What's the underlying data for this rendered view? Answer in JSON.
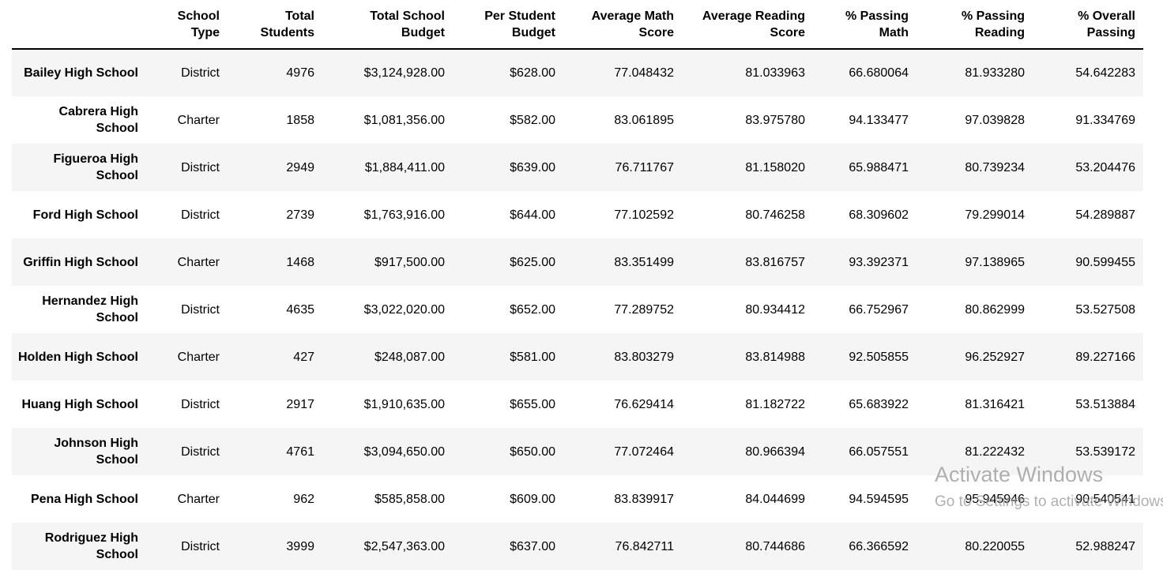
{
  "table": {
    "columns": [
      "School Type",
      "Total Students",
      "Total School Budget",
      "Per Student Budget",
      "Average Math Score",
      "Average Reading Score",
      "% Passing Math",
      "% Passing Reading",
      "% Overall Passing"
    ],
    "rows": [
      {
        "school": "Bailey High School",
        "cells": [
          "District",
          "4976",
          "$3,124,928.00",
          "$628.00",
          "77.048432",
          "81.033963",
          "66.680064",
          "81.933280",
          "54.642283"
        ]
      },
      {
        "school": "Cabrera High School",
        "cells": [
          "Charter",
          "1858",
          "$1,081,356.00",
          "$582.00",
          "83.061895",
          "83.975780",
          "94.133477",
          "97.039828",
          "91.334769"
        ]
      },
      {
        "school": "Figueroa High School",
        "cells": [
          "District",
          "2949",
          "$1,884,411.00",
          "$639.00",
          "76.711767",
          "81.158020",
          "65.988471",
          "80.739234",
          "53.204476"
        ]
      },
      {
        "school": "Ford High School",
        "cells": [
          "District",
          "2739",
          "$1,763,916.00",
          "$644.00",
          "77.102592",
          "80.746258",
          "68.309602",
          "79.299014",
          "54.289887"
        ]
      },
      {
        "school": "Griffin High School",
        "cells": [
          "Charter",
          "1468",
          "$917,500.00",
          "$625.00",
          "83.351499",
          "83.816757",
          "93.392371",
          "97.138965",
          "90.599455"
        ]
      },
      {
        "school": "Hernandez High School",
        "cells": [
          "District",
          "4635",
          "$3,022,020.00",
          "$652.00",
          "77.289752",
          "80.934412",
          "66.752967",
          "80.862999",
          "53.527508"
        ]
      },
      {
        "school": "Holden High School",
        "cells": [
          "Charter",
          "427",
          "$248,087.00",
          "$581.00",
          "83.803279",
          "83.814988",
          "92.505855",
          "96.252927",
          "89.227166"
        ]
      },
      {
        "school": "Huang High School",
        "cells": [
          "District",
          "2917",
          "$1,910,635.00",
          "$655.00",
          "76.629414",
          "81.182722",
          "65.683922",
          "81.316421",
          "53.513884"
        ]
      },
      {
        "school": "Johnson High School",
        "cells": [
          "District",
          "4761",
          "$3,094,650.00",
          "$650.00",
          "77.072464",
          "80.966394",
          "66.057551",
          "81.222432",
          "53.539172"
        ]
      },
      {
        "school": "Pena High School",
        "cells": [
          "Charter",
          "962",
          "$585,858.00",
          "$609.00",
          "83.839917",
          "84.044699",
          "94.594595",
          "95.945946",
          "90.540541"
        ]
      },
      {
        "school": "Rodriguez High School",
        "cells": [
          "District",
          "3999",
          "$2,547,363.00",
          "$637.00",
          "76.842711",
          "80.744686",
          "66.366592",
          "80.220055",
          "52.988247"
        ]
      }
    ]
  },
  "watermark": {
    "title": "Activate Windows",
    "subtitle": "Go to Settings to activate Windows."
  }
}
